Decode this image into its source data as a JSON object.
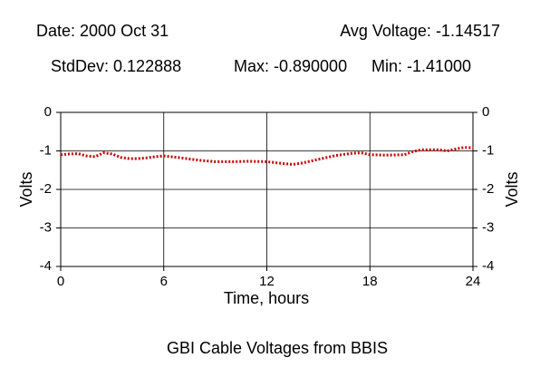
{
  "chart_data": {
    "type": "line",
    "title": "GBI Cable Voltages from BBIS",
    "annotations": [
      "Date: 2000 Oct 31",
      "Avg Voltage: -1.14517",
      "StdDev: 0.122888",
      "Max: -0.890000",
      "Min: -1.41000"
    ],
    "xlabel": "Time, hours",
    "ylabel": "Volts",
    "y2label": "Volts",
    "xlim": [
      0,
      24
    ],
    "xticks": [
      0,
      6,
      12,
      18,
      24
    ],
    "ylim": [
      -4,
      0
    ],
    "yticks": [
      0,
      -1,
      -2,
      -3,
      -4
    ],
    "y2lim": [
      -4,
      0
    ],
    "y2ticks": [
      0,
      -1,
      -2,
      -3,
      -4
    ],
    "grid": true,
    "x": [
      0,
      0.5,
      1,
      1.5,
      2,
      2.5,
      3,
      3.5,
      4,
      4.5,
      5,
      5.5,
      6,
      7,
      8,
      9,
      10,
      11,
      12,
      13,
      13.5,
      14,
      15,
      16,
      17,
      17.5,
      18,
      19,
      20,
      20.5,
      21,
      22,
      22.5,
      23,
      23.5,
      24
    ],
    "series": [
      {
        "color": "#cc0000",
        "values": [
          -1.1,
          -1.08,
          -1.07,
          -1.13,
          -1.15,
          -1.05,
          -1.08,
          -1.17,
          -1.2,
          -1.2,
          -1.18,
          -1.15,
          -1.13,
          -1.18,
          -1.24,
          -1.28,
          -1.28,
          -1.27,
          -1.28,
          -1.33,
          -1.35,
          -1.32,
          -1.22,
          -1.12,
          -1.06,
          -1.05,
          -1.1,
          -1.11,
          -1.1,
          -1.02,
          -0.97,
          -0.97,
          -1.0,
          -0.95,
          -0.91,
          -0.92
        ]
      }
    ]
  }
}
